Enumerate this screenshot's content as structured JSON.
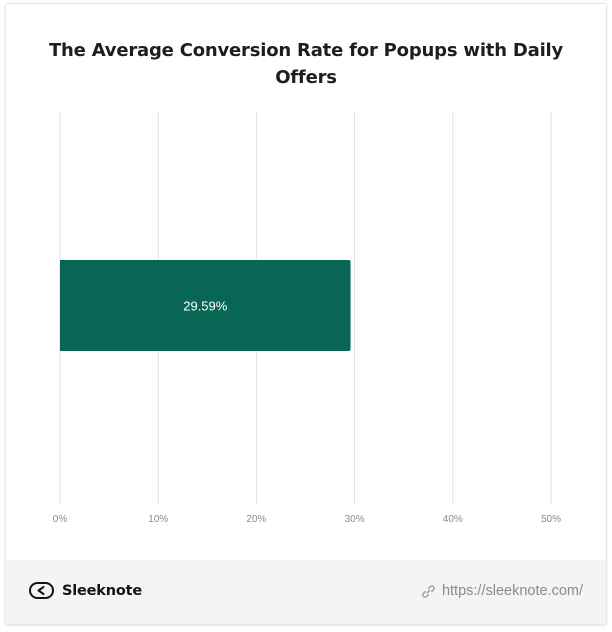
{
  "chart_data": {
    "type": "bar",
    "orientation": "horizontal",
    "title": "The Average Conversion Rate for Popups with Daily Offers",
    "categories": [
      ""
    ],
    "values": [
      29.59
    ],
    "data_labels": [
      "29.59%"
    ],
    "xlim": [
      0,
      50
    ],
    "x_ticks": [
      0,
      10,
      20,
      30,
      40,
      50
    ],
    "x_tick_labels": [
      "0%",
      "10%",
      "20%",
      "30%",
      "40%",
      "50%"
    ],
    "xlabel": "",
    "ylabel": "",
    "grid": "vertical",
    "legend": "none",
    "colors": {
      "bar": "#0a6654",
      "grid": "#e2e2e2",
      "tick_text": "#8a8a8a",
      "bar_label": "#ffffff"
    }
  },
  "footer": {
    "brand": "Sleeknote",
    "url": "https://sleeknote.com/",
    "brand_icon": "sleeknote-logo-icon",
    "url_icon": "link-icon"
  }
}
